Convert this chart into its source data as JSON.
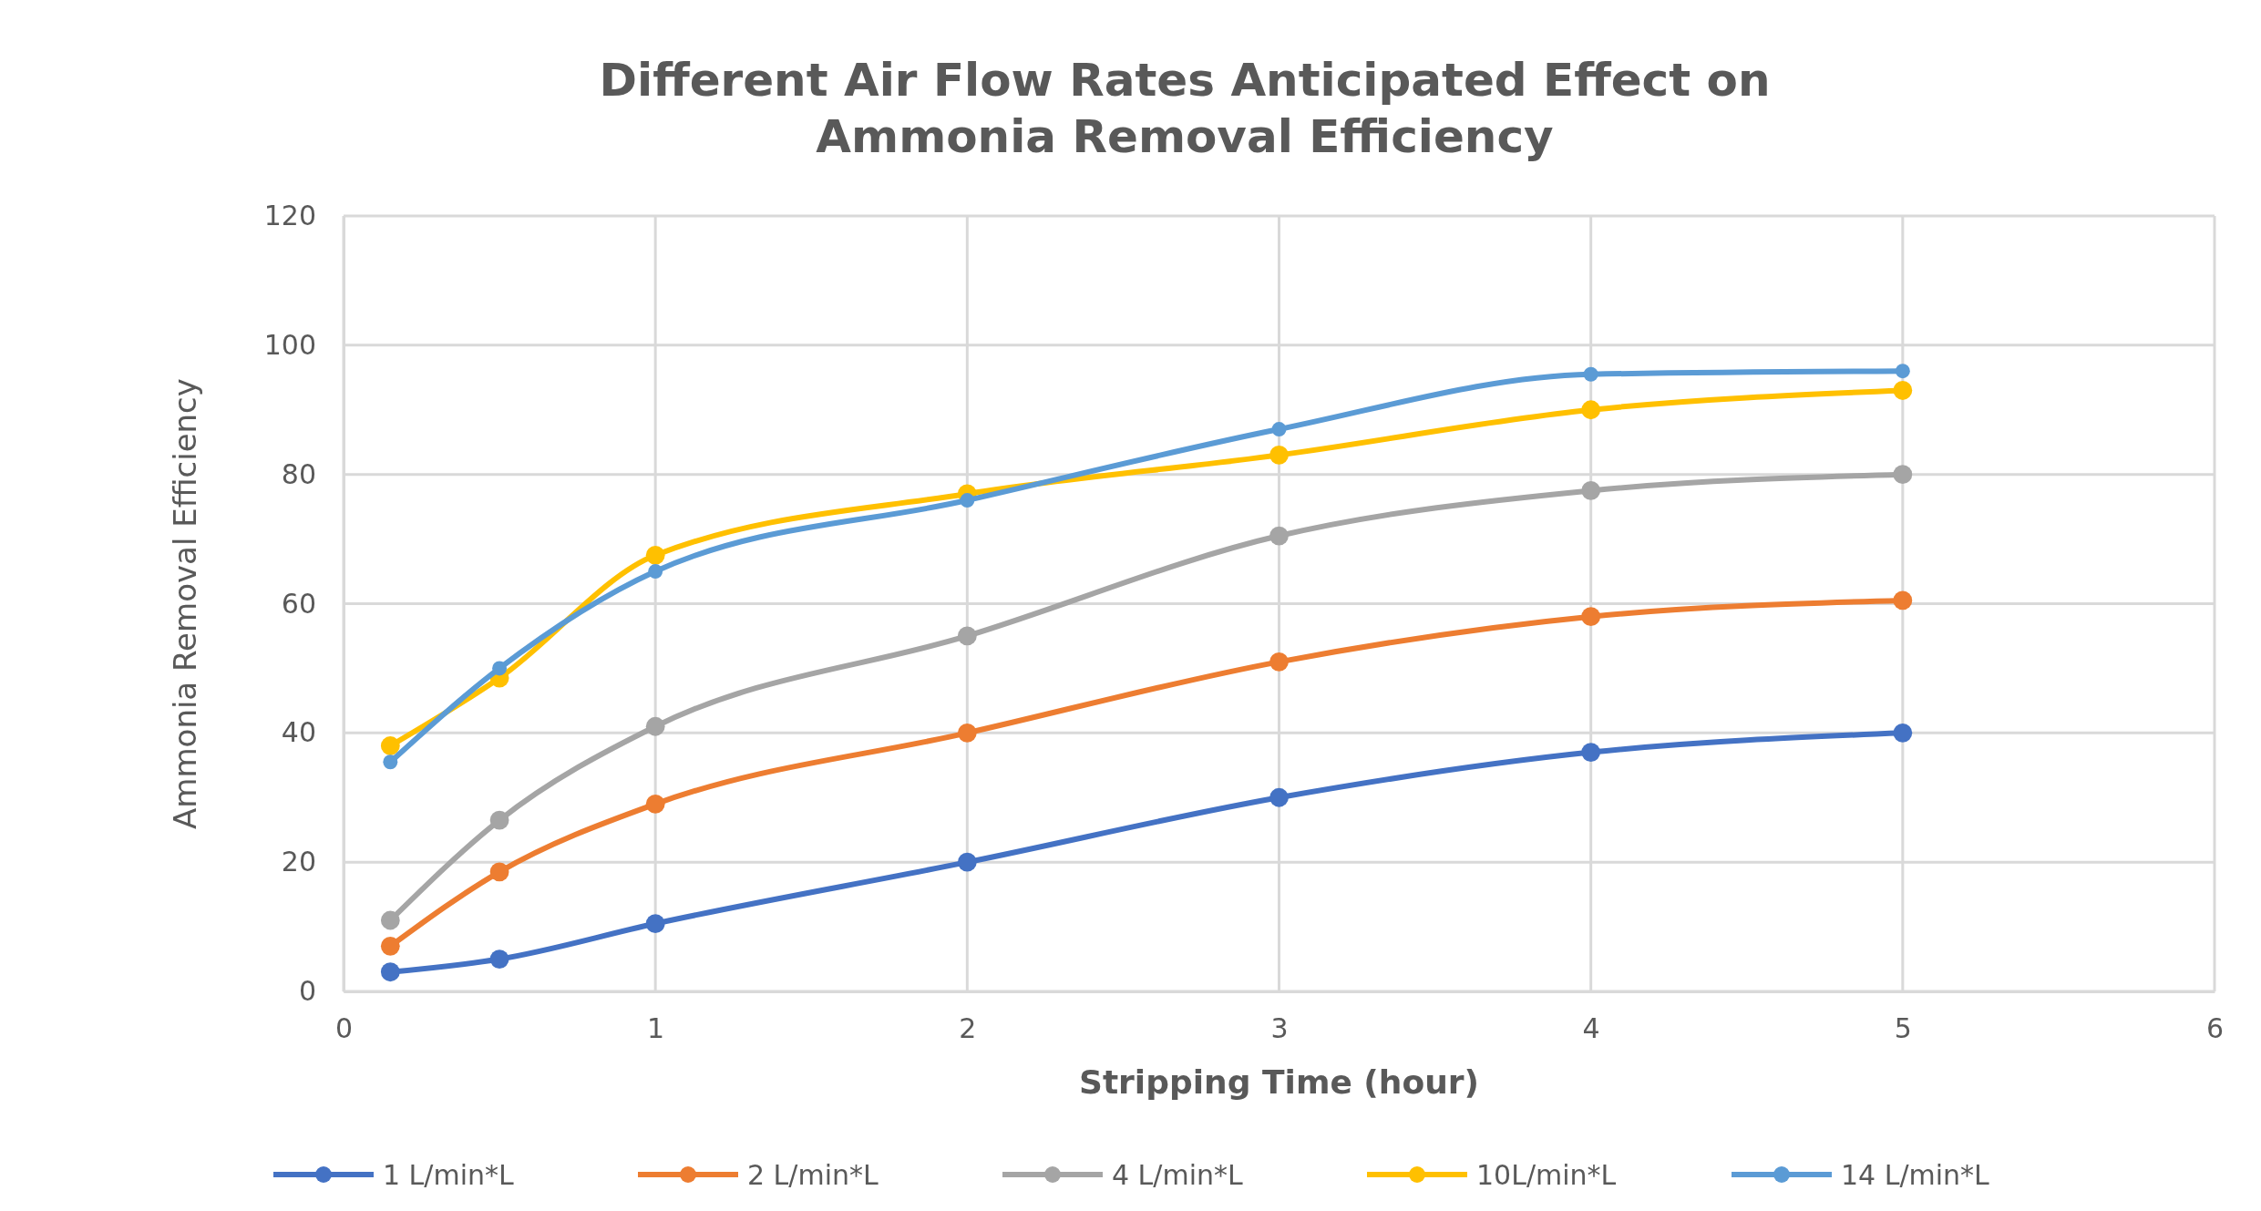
{
  "chart_data": {
    "type": "line",
    "title": "Different Air Flow Rates Anticipated Effect on Ammonia Removal Efficiency",
    "xlabel": "Stripping Time (hour)",
    "ylabel": "Ammonia Removal Efficiency",
    "x": [
      0.15,
      0.5,
      1,
      2,
      3,
      4,
      5
    ],
    "series": [
      {
        "name": "1 L/min*L",
        "color": "#4472c4",
        "values": [
          3,
          5,
          10.5,
          20,
          30,
          37,
          40
        ]
      },
      {
        "name": "2 L/min*L",
        "color": "#ed7d31",
        "values": [
          7,
          18.5,
          29,
          40,
          51,
          58,
          60.5
        ]
      },
      {
        "name": "4 L/min*L",
        "color": "#a5a5a5",
        "values": [
          11,
          26.5,
          41,
          55,
          70.5,
          77.5,
          80
        ]
      },
      {
        "name": "10L/min*L",
        "color": "#ffc000",
        "values": [
          38,
          48.5,
          67.5,
          77,
          83,
          90,
          93
        ]
      },
      {
        "name": "14 L/min*L",
        "color": "#5b9bd5",
        "values": [
          35.5,
          50,
          65,
          76,
          87,
          95.5,
          96
        ]
      }
    ],
    "xlim": [
      0,
      6
    ],
    "xticks": [
      0,
      1,
      2,
      3,
      4,
      5,
      6
    ],
    "ylim": [
      0,
      120
    ],
    "yticks": [
      0,
      20,
      40,
      60,
      80,
      100,
      120
    ],
    "grid": true,
    "legend": "bottom",
    "marker": "circle",
    "line_style": "solid"
  }
}
